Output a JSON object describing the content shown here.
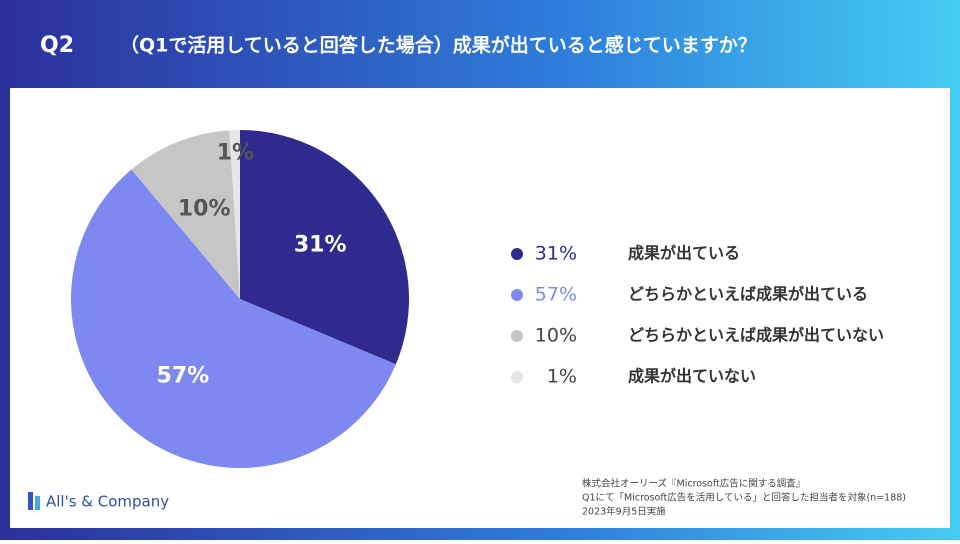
{
  "header": {
    "q": "Q2",
    "question": "（Q1で活用していると回答した場合）成果が出ていると感じていますか？"
  },
  "chart_data": {
    "type": "pie",
    "categories": [
      "成果が出ている",
      "どちらかといえば成果が出ている",
      "どちらかといえば成果が出ていない",
      "成果が出ていない"
    ],
    "values": [
      31,
      57,
      10,
      1
    ],
    "value_labels": [
      "31%",
      "57%",
      "10%",
      "1%"
    ],
    "colors": [
      "#2f2b8e",
      "#7d88f0",
      "#c6c6c6",
      "#e6e6e6"
    ]
  },
  "footnote": [
    "株式会社オーリーズ『Microsoft広告に関する調査』",
    "Q1にて「Microsoft広告を活用している」と回答した担当者を対象(n=188)",
    "2023年9月5日実施"
  ],
  "logo": "All's & Company"
}
